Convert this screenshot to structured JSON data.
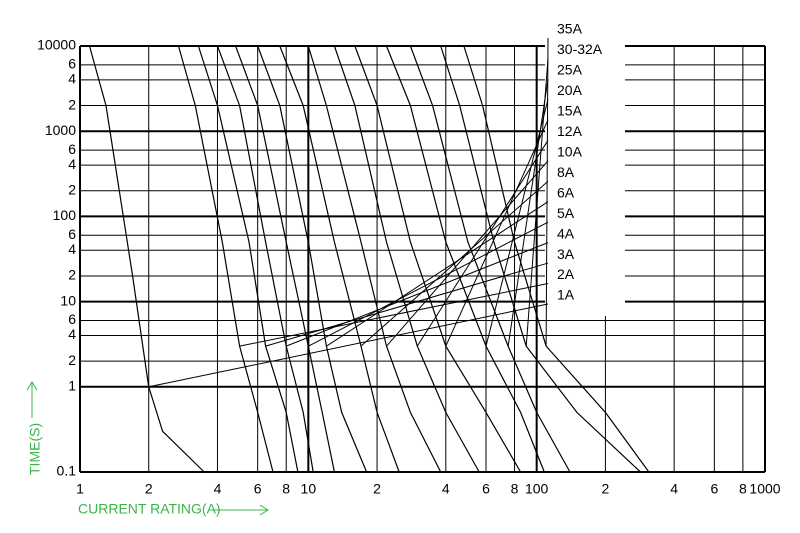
{
  "chart_data": {
    "type": "line",
    "log_x": true,
    "log_y": true,
    "grid": true,
    "x_label": "CURRENT RATING(A)",
    "y_label": "TIME(S)",
    "xlim": [
      1,
      1000
    ],
    "ylim": [
      0.1,
      10000
    ],
    "xticks": [
      1,
      2,
      4,
      6,
      8,
      10,
      {
        "value": 20,
        "label": "2"
      },
      {
        "value": 40,
        "label": "4"
      },
      {
        "value": 60,
        "label": "6"
      },
      {
        "value": 80,
        "label": "8"
      },
      100,
      {
        "value": 200,
        "label": "2"
      },
      {
        "value": 400,
        "label": "4"
      },
      {
        "value": 600,
        "label": "6"
      },
      {
        "value": 800,
        "label": "8"
      },
      1000
    ],
    "yticks": [
      0.1,
      2,
      4,
      6,
      1,
      {
        "value": 20,
        "label": "2"
      },
      {
        "value": 40,
        "label": "4"
      },
      {
        "value": 60,
        "label": "6"
      },
      10,
      {
        "value": 200,
        "label": "2"
      },
      {
        "value": 400,
        "label": "4"
      },
      {
        "value": 600,
        "label": "6"
      },
      100,
      {
        "value": 2000,
        "label": "2"
      },
      {
        "value": 4000,
        "label": "4"
      },
      {
        "value": 6000,
        "label": "6"
      },
      1000,
      10000
    ],
    "series": [
      {
        "name": "35A",
        "color": "#000",
        "x": [
          48,
          58,
          80,
          110,
          200,
          310
        ],
        "values": [
          10000,
          2000,
          50,
          3,
          0.5,
          0.1
        ]
      },
      {
        "name": "30-32A",
        "color": "#000",
        "x": [
          38,
          46,
          65,
          90,
          150,
          285
        ],
        "values": [
          10000,
          2000,
          50,
          3,
          0.5,
          0.1
        ]
      },
      {
        "name": "25A",
        "color": "#000",
        "x": [
          28,
          35,
          50,
          75,
          100,
          140
        ],
        "values": [
          10000,
          2000,
          50,
          3,
          0.5,
          0.1
        ]
      },
      {
        "name": "20A",
        "color": "#000",
        "x": [
          22,
          28,
          40,
          60,
          85,
          108
        ],
        "values": [
          10000,
          2000,
          50,
          3,
          0.5,
          0.1
        ]
      },
      {
        "name": "15A",
        "color": "#000",
        "x": [
          16,
          20,
          28,
          40,
          60,
          85
        ],
        "values": [
          10000,
          2000,
          50,
          3,
          0.5,
          0.1
        ]
      },
      {
        "name": "12A",
        "color": "#000",
        "x": [
          13,
          16,
          22,
          30,
          40,
          56
        ],
        "values": [
          10000,
          2000,
          50,
          3,
          0.5,
          0.1
        ]
      },
      {
        "name": "10A",
        "color": "#000",
        "x": [
          10,
          12,
          17,
          22,
          28,
          38
        ],
        "values": [
          10000,
          2000,
          50,
          3,
          0.5,
          0.1
        ]
      },
      {
        "name": "8A",
        "color": "#000",
        "x": [
          7.5,
          9.5,
          13,
          17,
          20,
          25
        ],
        "values": [
          10000,
          2000,
          50,
          3,
          0.5,
          0.1
        ]
      },
      {
        "name": "6A",
        "color": "#000",
        "x": [
          6,
          7.5,
          10,
          12,
          14,
          18
        ],
        "values": [
          10000,
          2000,
          50,
          3,
          0.5,
          0.1
        ]
      },
      {
        "name": "5A",
        "color": "#000",
        "x": [
          4.8,
          6,
          8,
          10,
          11.5,
          13
        ],
        "values": [
          10000,
          2000,
          50,
          3,
          0.5,
          0.1
        ]
      },
      {
        "name": "4A",
        "color": "#000",
        "x": [
          4,
          5,
          6.5,
          8,
          9.5,
          10.5
        ],
        "values": [
          10000,
          2000,
          50,
          3,
          0.5,
          0.1
        ]
      },
      {
        "name": "3A",
        "color": "#000",
        "x": [
          3.3,
          4,
          5.5,
          6.5,
          8,
          9
        ],
        "values": [
          10000,
          2000,
          50,
          3,
          0.5,
          0.1
        ]
      },
      {
        "name": "2A",
        "color": "#000",
        "x": [
          2.7,
          3.2,
          4.2,
          5,
          6,
          7
        ],
        "values": [
          10000,
          2000,
          50,
          3,
          0.5,
          0.1
        ]
      },
      {
        "name": "1A",
        "color": "#000",
        "x": [
          1.1,
          1.3,
          1.7,
          2,
          2.3,
          3.5
        ],
        "values": [
          10000,
          2000,
          20,
          1,
          0.3,
          0.1
        ]
      }
    ]
  }
}
